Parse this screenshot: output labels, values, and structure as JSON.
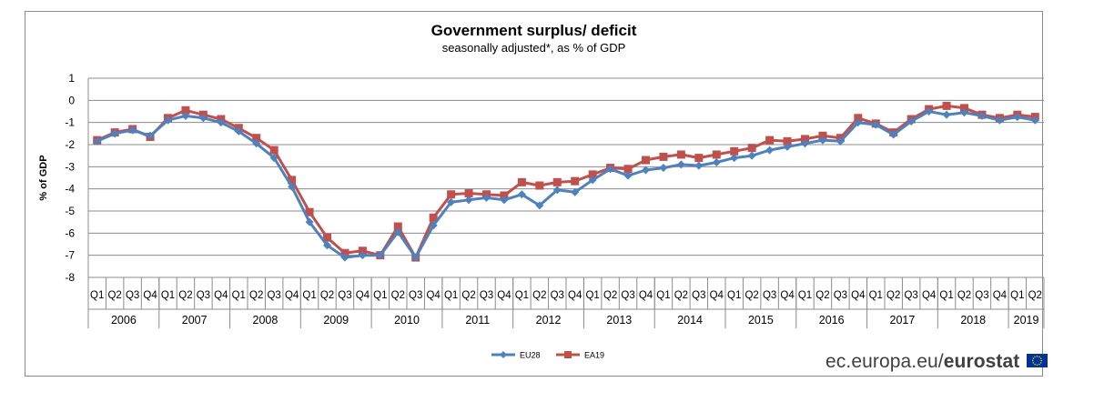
{
  "chart_data": {
    "type": "line",
    "title": "Government surplus/ deficit",
    "subtitle": "seasonally adjusted*,  as % of GDP",
    "xlabel": "",
    "ylabel": "% of GDP",
    "ylim": [
      -8,
      1
    ],
    "yticks": [
      "1",
      "0",
      "-1",
      "-2",
      "-3",
      "-4",
      "-5",
      "-6",
      "-7",
      "-8"
    ],
    "grid": true,
    "legend": "bottom-center",
    "years": [
      {
        "label": "2006",
        "quarters": 4
      },
      {
        "label": "2007",
        "quarters": 4
      },
      {
        "label": "2008",
        "quarters": 4
      },
      {
        "label": "2009",
        "quarters": 4
      },
      {
        "label": "2010",
        "quarters": 4
      },
      {
        "label": "2011",
        "quarters": 4
      },
      {
        "label": "2012",
        "quarters": 4
      },
      {
        "label": "2013",
        "quarters": 4
      },
      {
        "label": "2014",
        "quarters": 4
      },
      {
        "label": "2015",
        "quarters": 4
      },
      {
        "label": "2016",
        "quarters": 4
      },
      {
        "label": "2017",
        "quarters": 4
      },
      {
        "label": "2018",
        "quarters": 4
      },
      {
        "label": "2019",
        "quarters": 2
      }
    ],
    "quarter_labels": [
      "Q1",
      "Q2",
      "Q3",
      "Q4"
    ],
    "series": [
      {
        "name": "EU28",
        "color": "#4f81bd",
        "marker": "diamond",
        "values": [
          -1.85,
          -1.5,
          -1.35,
          -1.6,
          -0.9,
          -0.7,
          -0.8,
          -1.0,
          -1.4,
          -1.95,
          -2.6,
          -3.9,
          -5.5,
          -6.55,
          -7.1,
          -7.0,
          -7.0,
          -5.95,
          -7.1,
          -5.65,
          -4.6,
          -4.5,
          -4.4,
          -4.5,
          -4.25,
          -4.75,
          -4.05,
          -4.15,
          -3.6,
          -3.1,
          -3.4,
          -3.15,
          -3.05,
          -2.9,
          -2.95,
          -2.8,
          -2.6,
          -2.5,
          -2.25,
          -2.1,
          -1.95,
          -1.8,
          -1.85,
          -1.0,
          -1.1,
          -1.55,
          -0.95,
          -0.5,
          -0.65,
          -0.55,
          -0.7,
          -0.9,
          -0.75,
          -0.9
        ]
      },
      {
        "name": "EA19",
        "color": "#c0504d",
        "marker": "square",
        "values": [
          -1.8,
          -1.45,
          -1.3,
          -1.65,
          -0.8,
          -0.45,
          -0.65,
          -0.85,
          -1.25,
          -1.7,
          -2.25,
          -3.6,
          -5.05,
          -6.2,
          -6.9,
          -6.8,
          -7.0,
          -5.7,
          -7.1,
          -5.3,
          -4.25,
          -4.2,
          -4.25,
          -4.3,
          -3.7,
          -3.85,
          -3.7,
          -3.65,
          -3.35,
          -3.05,
          -3.1,
          -2.7,
          -2.55,
          -2.45,
          -2.6,
          -2.45,
          -2.3,
          -2.15,
          -1.8,
          -1.85,
          -1.75,
          -1.6,
          -1.7,
          -0.8,
          -1.05,
          -1.45,
          -0.85,
          -0.4,
          -0.25,
          -0.35,
          -0.65,
          -0.8,
          -0.65,
          -0.75
        ]
      }
    ]
  },
  "branding": {
    "site": "ec.europa.eu/",
    "name": "eurostat"
  }
}
